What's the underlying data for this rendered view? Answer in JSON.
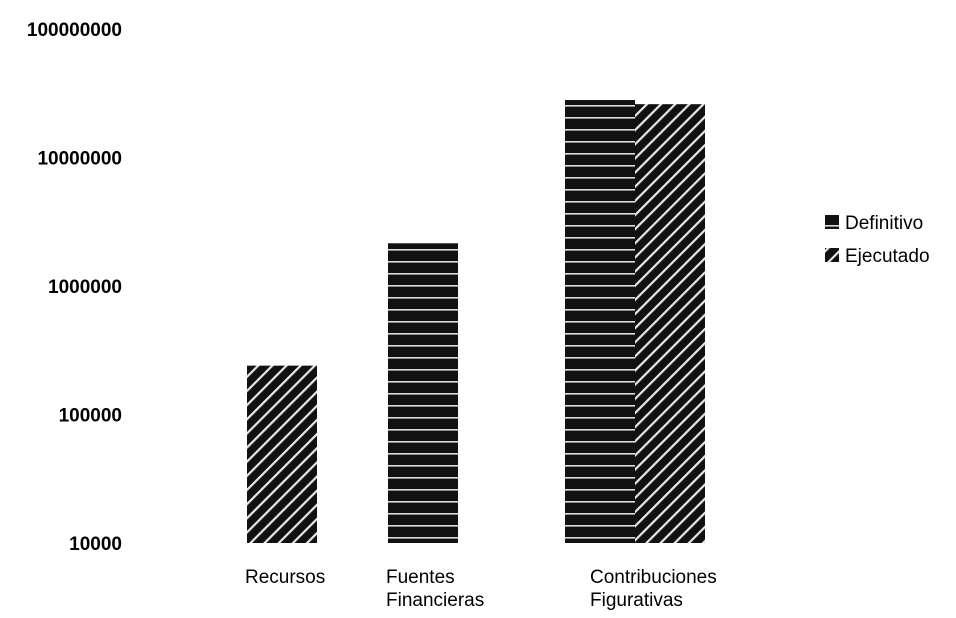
{
  "chart_data": {
    "type": "bar",
    "yscale": "log",
    "ylim": [
      10000,
      100000000
    ],
    "yticks": [
      "10000",
      "100000",
      "1000000",
      "10000000",
      "100000000"
    ],
    "categories": [
      [
        "Recursos"
      ],
      [
        "Fuentes",
        "Financieras"
      ],
      [
        "Contribuciones",
        "Figurativas"
      ]
    ],
    "series": [
      {
        "name": "Definitivo",
        "pattern": "horizontal-lines",
        "values": [
          null,
          2150000,
          28000000
        ]
      },
      {
        "name": "Ejecutado",
        "pattern": "diagonal-hatch",
        "values": [
          240000,
          null,
          26000000
        ]
      }
    ],
    "grid": false,
    "legend_position": "right",
    "colors": {
      "fill": "#111111",
      "background": "#ffffff",
      "stripe": "#ffffff"
    }
  }
}
